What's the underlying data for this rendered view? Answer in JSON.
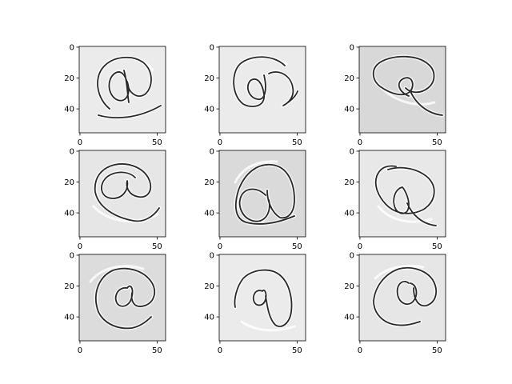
{
  "chart_data": {
    "type": "image-grid",
    "grid": {
      "rows": 3,
      "cols": 3
    },
    "image_size": [
      56,
      56
    ],
    "x_ticks": [
      "0",
      "50"
    ],
    "y_ticks": [
      "0",
      "20",
      "40"
    ],
    "colormap": "gray",
    "panels": [
      {
        "background": "#ebebeb",
        "content": "handwritten @ symbol"
      },
      {
        "background": "#ebebeb",
        "content": "handwritten @ symbol"
      },
      {
        "background": "#d8d8d8",
        "content": "handwritten @ symbol"
      },
      {
        "background": "#e6e6e6",
        "content": "handwritten @ symbol"
      },
      {
        "background": "#dadada",
        "content": "handwritten @ symbol"
      },
      {
        "background": "#e8e8e8",
        "content": "handwritten @ symbol"
      },
      {
        "background": "#dcdcdc",
        "content": "handwritten @ symbol"
      },
      {
        "background": "#ebebeb",
        "content": "handwritten @ symbol"
      },
      {
        "background": "#e6e6e6",
        "content": "handwritten @ symbol"
      }
    ]
  }
}
